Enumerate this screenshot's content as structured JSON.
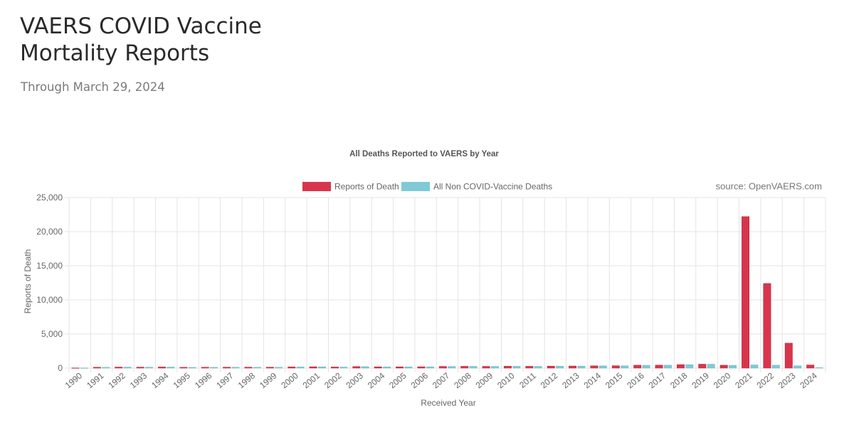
{
  "page": {
    "title_line1": "VAERS COVID Vaccine",
    "title_line2": "Mortality Reports",
    "subtitle": "Through March 29, 2024"
  },
  "colors": {
    "death": "#d8354c",
    "non_covid": "#7fcad6",
    "grid": "#e4e4e4",
    "text": "#666666"
  },
  "chart_data": {
    "type": "bar",
    "title": "All Deaths Reported to VAERS by Year",
    "source_note": "source: OpenVAERS.com",
    "xlabel": "Received Year",
    "ylabel": "Reports of Death",
    "ylim": [
      0,
      25000
    ],
    "yticks": [
      0,
      5000,
      10000,
      15000,
      20000,
      25000
    ],
    "ytick_labels": [
      "0",
      "5,000",
      "10,000",
      "15,000",
      "20,000",
      "25,000"
    ],
    "grid": true,
    "legend_position": "top-center",
    "categories": [
      "1990",
      "1991",
      "1992",
      "1993",
      "1994",
      "1995",
      "1996",
      "1997",
      "1998",
      "1999",
      "2000",
      "2001",
      "2002",
      "2003",
      "2004",
      "2005",
      "2006",
      "2007",
      "2008",
      "2009",
      "2010",
      "2011",
      "2012",
      "2013",
      "2014",
      "2015",
      "2016",
      "2017",
      "2018",
      "2019",
      "2020",
      "2021",
      "2022",
      "2023",
      "2024"
    ],
    "series": [
      {
        "name": "Reports of Death",
        "color": "#d8354c",
        "values": [
          20,
          120,
          150,
          140,
          160,
          110,
          120,
          130,
          130,
          130,
          170,
          190,
          160,
          220,
          180,
          180,
          190,
          240,
          260,
          250,
          270,
          260,
          280,
          300,
          330,
          340,
          420,
          430,
          500,
          570,
          420,
          22200,
          12400,
          3650,
          450
        ]
      },
      {
        "name": "All Non COVID-Vaccine Deaths",
        "color": "#7fcad6",
        "values": [
          15,
          110,
          140,
          130,
          150,
          100,
          110,
          120,
          120,
          120,
          160,
          180,
          150,
          210,
          170,
          170,
          180,
          230,
          250,
          240,
          260,
          250,
          270,
          290,
          320,
          330,
          410,
          420,
          490,
          560,
          400,
          460,
          420,
          330,
          60
        ]
      }
    ]
  }
}
